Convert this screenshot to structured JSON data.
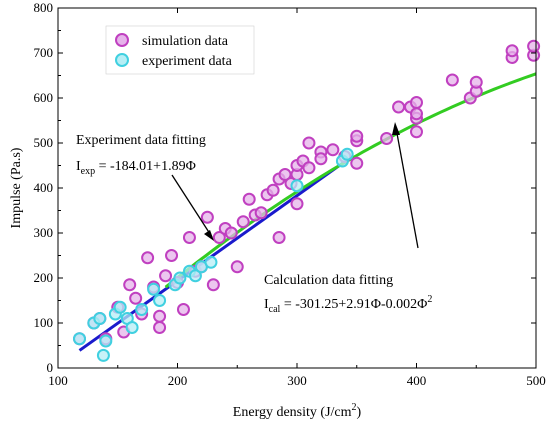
{
  "chart_data": {
    "type": "scatter",
    "title": "",
    "xlabel": "Energy density (J/cm",
    "xlabel_sup": "2",
    "xlabel_close": ")",
    "ylabel": "Impulse (Pa.s)",
    "xlim": [
      100,
      500
    ],
    "ylim": [
      0,
      800
    ],
    "x_ticks": [
      100,
      200,
      300,
      400,
      500
    ],
    "y_ticks": [
      0,
      100,
      200,
      300,
      400,
      500,
      600,
      700,
      800
    ],
    "grid": false,
    "legend_position": "top-left",
    "colors": {
      "simulation": "#c040c0",
      "simulation_fill": "#e6b3ea",
      "experiment": "#40d0e0",
      "experiment_fill": "#b6eef5",
      "calc_fit": "#33cc22",
      "exp_fit": "#1a1acc"
    },
    "series": [
      {
        "name": "simulation data",
        "marker": "circle",
        "points": [
          [
            118,
            65
          ],
          [
            130,
            100
          ],
          [
            135,
            110
          ],
          [
            140,
            65
          ],
          [
            150,
            135
          ],
          [
            155,
            80
          ],
          [
            160,
            185
          ],
          [
            165,
            155
          ],
          [
            170,
            120
          ],
          [
            175,
            245
          ],
          [
            180,
            180
          ],
          [
            185,
            90
          ],
          [
            185,
            115
          ],
          [
            190,
            205
          ],
          [
            195,
            250
          ],
          [
            200,
            190
          ],
          [
            205,
            130
          ],
          [
            210,
            290
          ],
          [
            215,
            215
          ],
          [
            220,
            225
          ],
          [
            225,
            335
          ],
          [
            230,
            185
          ],
          [
            235,
            290
          ],
          [
            240,
            310
          ],
          [
            245,
            300
          ],
          [
            250,
            225
          ],
          [
            255,
            325
          ],
          [
            260,
            375
          ],
          [
            265,
            340
          ],
          [
            270,
            345
          ],
          [
            275,
            385
          ],
          [
            280,
            395
          ],
          [
            285,
            290
          ],
          [
            285,
            420
          ],
          [
            290,
            430
          ],
          [
            295,
            410
          ],
          [
            300,
            365
          ],
          [
            300,
            430
          ],
          [
            300,
            450
          ],
          [
            305,
            460
          ],
          [
            310,
            445
          ],
          [
            310,
            500
          ],
          [
            320,
            480
          ],
          [
            320,
            465
          ],
          [
            330,
            485
          ],
          [
            340,
            470
          ],
          [
            350,
            455
          ],
          [
            350,
            505
          ],
          [
            350,
            515
          ],
          [
            375,
            510
          ],
          [
            385,
            580
          ],
          [
            395,
            580
          ],
          [
            400,
            590
          ],
          [
            400,
            525
          ],
          [
            400,
            555
          ],
          [
            400,
            565
          ],
          [
            430,
            640
          ],
          [
            445,
            600
          ],
          [
            450,
            615
          ],
          [
            450,
            635
          ],
          [
            480,
            690
          ],
          [
            480,
            705
          ],
          [
            498,
            695
          ],
          [
            498,
            715
          ]
        ]
      },
      {
        "name": "experiment data",
        "marker": "circle",
        "points": [
          [
            118,
            65
          ],
          [
            130,
            100
          ],
          [
            135,
            110
          ],
          [
            138,
            28
          ],
          [
            140,
            60
          ],
          [
            148,
            120
          ],
          [
            152,
            135
          ],
          [
            158,
            110
          ],
          [
            162,
            90
          ],
          [
            170,
            130
          ],
          [
            180,
            175
          ],
          [
            185,
            150
          ],
          [
            198,
            185
          ],
          [
            202,
            200
          ],
          [
            210,
            215
          ],
          [
            215,
            205
          ],
          [
            220,
            225
          ],
          [
            228,
            235
          ],
          [
            300,
            405
          ],
          [
            338,
            460
          ],
          [
            342,
            475
          ]
        ]
      }
    ],
    "fits": [
      {
        "name": "Experiment data fitting",
        "prefix": "I",
        "subscript": "exp",
        "equation": " = -184.01+1.89Φ",
        "coefficients": [
          -184.01,
          1.89
        ],
        "x_range": [
          118,
          342
        ]
      },
      {
        "name": "Calculation data fitting",
        "prefix": "I",
        "subscript": "cal",
        "equation": " = -301.25+2.91Φ-0.002Φ",
        "equation_sup": "2",
        "coefficients": [
          -301.25,
          2.91,
          -0.002
        ],
        "x_range": [
          190,
          500
        ]
      }
    ]
  }
}
